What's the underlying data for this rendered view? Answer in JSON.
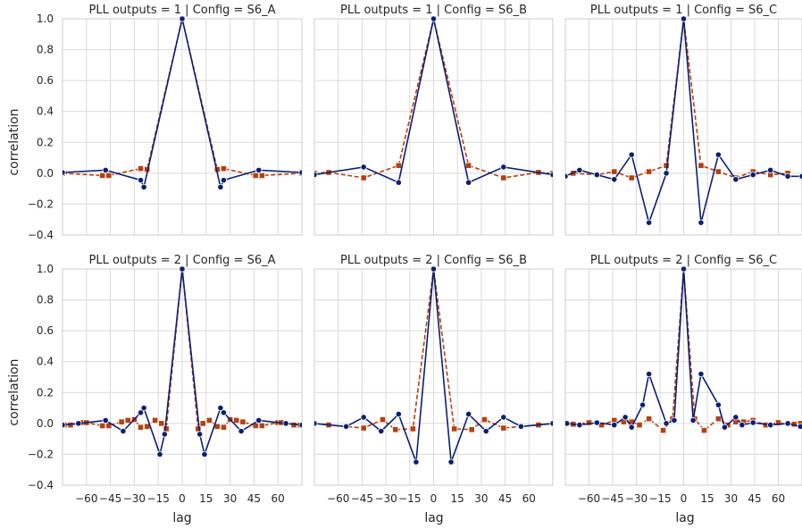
{
  "chart_data": {
    "type": "line",
    "layout": "facet-grid 2x3",
    "xlabel": "lag",
    "ylabel": "correlation",
    "xlim": [
      -75,
      75
    ],
    "ylim": [
      -0.4,
      1.0
    ],
    "xticks": [
      -60,
      -45,
      -30,
      -15,
      0,
      15,
      30,
      45,
      60
    ],
    "xtick_labels": [
      "−60",
      "−45",
      "−30",
      "−15",
      "0",
      "15",
      "30",
      "45",
      "60"
    ],
    "yticks": [
      -0.4,
      -0.2,
      0.0,
      0.2,
      0.4,
      0.6,
      0.8,
      1.0
    ],
    "ytick_labels": [
      "−0.4",
      "−0.2",
      "0.0",
      "0.2",
      "0.4",
      "0.6",
      "0.8",
      "1.0"
    ],
    "grid": true,
    "colors": {
      "series_a": "#0b1f73",
      "series_b": "#b5400f",
      "grid": "#d9d9d9",
      "frame": "#cccccc"
    },
    "panels": [
      {
        "title": "PLL outputs = 1 | Config = S6_A",
        "series": [
          {
            "style": "solid",
            "marker": "circle",
            "color": "#0b1f73",
            "x": [
              -75,
              -48,
              -26,
              -24,
              0,
              24,
              26,
              48,
              75
            ],
            "y": [
              0.005,
              0.02,
              -0.045,
              -0.09,
              1.0,
              -0.09,
              -0.045,
              0.02,
              0.005
            ]
          },
          {
            "style": "dashed",
            "marker": "square",
            "color": "#b5400f",
            "x": [
              -75,
              -50,
              -46,
              -26,
              -22,
              0,
              22,
              26,
              46,
              50,
              75
            ],
            "y": [
              0.0,
              -0.015,
              -0.015,
              0.03,
              0.025,
              1.0,
              0.025,
              0.03,
              -0.015,
              -0.015,
              0.0
            ]
          }
        ]
      },
      {
        "title": "PLL outputs = 1 | Config = S6_B",
        "series": [
          {
            "style": "solid",
            "marker": "circle",
            "color": "#0b1f73",
            "x": [
              -75,
              -44,
              -22,
              0,
              22,
              44,
              75
            ],
            "y": [
              -0.01,
              0.04,
              -0.06,
              1.0,
              -0.06,
              0.04,
              -0.01
            ]
          },
          {
            "style": "dashed",
            "marker": "square",
            "color": "#b5400f",
            "x": [
              -75,
              -66,
              -44,
              -22,
              0,
              22,
              44,
              66,
              75
            ],
            "y": [
              0.0,
              0.005,
              -0.03,
              0.05,
              1.0,
              0.05,
              -0.03,
              0.005,
              0.0
            ]
          }
        ]
      },
      {
        "title": "PLL outputs = 1 | Config = S6_C",
        "series": [
          {
            "style": "solid",
            "marker": "circle",
            "color": "#0b1f73",
            "x": [
              -75,
              -66,
              -55,
              -44,
              -33,
              -22,
              -11,
              0,
              11,
              22,
              33,
              44,
              55,
              66,
              75
            ],
            "y": [
              -0.02,
              0.02,
              -0.01,
              -0.04,
              0.12,
              -0.32,
              0.0,
              1.0,
              -0.32,
              0.12,
              -0.04,
              -0.01,
              0.02,
              -0.02,
              -0.02
            ]
          },
          {
            "style": "dashed",
            "marker": "square",
            "color": "#b5400f",
            "x": [
              -70,
              -55,
              -44,
              -33,
              -22,
              -11,
              0,
              11,
              22,
              33,
              44,
              55,
              66
            ],
            "y": [
              0.0,
              -0.01,
              0.01,
              -0.03,
              0.01,
              0.05,
              1.0,
              0.05,
              0.01,
              -0.03,
              0.01,
              -0.01,
              0.0
            ]
          }
        ]
      },
      {
        "title": "PLL outputs = 2 | Config = S6_A",
        "series": [
          {
            "style": "solid",
            "marker": "circle",
            "color": "#0b1f73",
            "x": [
              -75,
              -65,
              -48,
              -37,
              -26,
              -24,
              -14,
              -11,
              0,
              11,
              14,
              24,
              26,
              37,
              48,
              65,
              75
            ],
            "y": [
              -0.01,
              0.0,
              0.02,
              -0.05,
              0.07,
              0.1,
              -0.2,
              -0.07,
              1.0,
              -0.07,
              -0.2,
              0.1,
              0.07,
              -0.05,
              0.02,
              0.0,
              -0.01
            ]
          },
          {
            "style": "dashed",
            "marker": "square",
            "color": "#b5400f",
            "x": [
              -74,
              -70,
              -62,
              -60,
              -50,
              -46,
              -38,
              -34,
              -30,
              -26,
              -22,
              -17,
              -13,
              -10,
              0,
              10,
              13,
              17,
              22,
              26,
              30,
              34,
              38,
              46,
              50,
              60,
              62,
              70,
              74
            ],
            "y": [
              -0.01,
              -0.01,
              0.005,
              0.005,
              -0.015,
              -0.015,
              0.01,
              0.02,
              0.025,
              -0.025,
              -0.02,
              0.02,
              0.0,
              -0.035,
              1.0,
              -0.035,
              0.0,
              0.02,
              -0.02,
              -0.025,
              0.025,
              0.02,
              0.01,
              -0.015,
              -0.015,
              0.005,
              0.005,
              -0.01,
              -0.01
            ]
          }
        ]
      },
      {
        "title": "PLL outputs = 2 | Config = S6_B",
        "series": [
          {
            "style": "solid",
            "marker": "circle",
            "color": "#0b1f73",
            "x": [
              -75,
              -55,
              -44,
              -33,
              -22,
              -11,
              0,
              11,
              22,
              33,
              44,
              55,
              75
            ],
            "y": [
              0.0,
              -0.02,
              0.04,
              -0.05,
              0.06,
              -0.25,
              1.0,
              -0.25,
              0.06,
              -0.05,
              0.04,
              -0.02,
              0.0
            ]
          },
          {
            "style": "dashed",
            "marker": "square",
            "color": "#b5400f",
            "x": [
              -75,
              -66,
              -44,
              -32,
              -24,
              -13,
              0,
              13,
              24,
              32,
              44,
              66,
              75
            ],
            "y": [
              0.0,
              -0.01,
              -0.03,
              0.025,
              -0.04,
              -0.035,
              1.0,
              -0.035,
              -0.04,
              0.025,
              -0.03,
              -0.01,
              0.0
            ]
          }
        ]
      },
      {
        "title": "PLL outputs = 2 | Config = S6_C",
        "series": [
          {
            "style": "solid",
            "marker": "circle",
            "color": "#0b1f73",
            "x": [
              -74,
              -66,
              -55,
              -44,
              -37,
              -33,
              -26,
              -22,
              -11,
              -6,
              0,
              6,
              11,
              22,
              26,
              33,
              37,
              44,
              55,
              66,
              74
            ],
            "y": [
              0.0,
              -0.01,
              0.005,
              -0.01,
              0.04,
              -0.025,
              0.12,
              0.32,
              0.0,
              0.02,
              1.0,
              0.02,
              0.32,
              0.12,
              -0.025,
              0.04,
              -0.01,
              0.005,
              -0.01,
              0.0,
              -0.02
            ]
          },
          {
            "style": "dashed",
            "marker": "square",
            "color": "#b5400f",
            "x": [
              -74,
              -70,
              -60,
              -52,
              -44,
              -38,
              -33,
              -28,
              -22,
              -13,
              -7,
              0,
              7,
              13,
              22,
              28,
              33,
              38,
              44,
              52,
              60,
              70,
              74
            ],
            "y": [
              0.0,
              -0.005,
              0.005,
              -0.01,
              0.02,
              0.01,
              0.01,
              -0.01,
              0.03,
              -0.045,
              0.03,
              1.0,
              0.03,
              -0.045,
              0.03,
              -0.01,
              0.01,
              0.01,
              0.02,
              -0.01,
              0.005,
              -0.005,
              0.0
            ]
          }
        ]
      }
    ]
  }
}
